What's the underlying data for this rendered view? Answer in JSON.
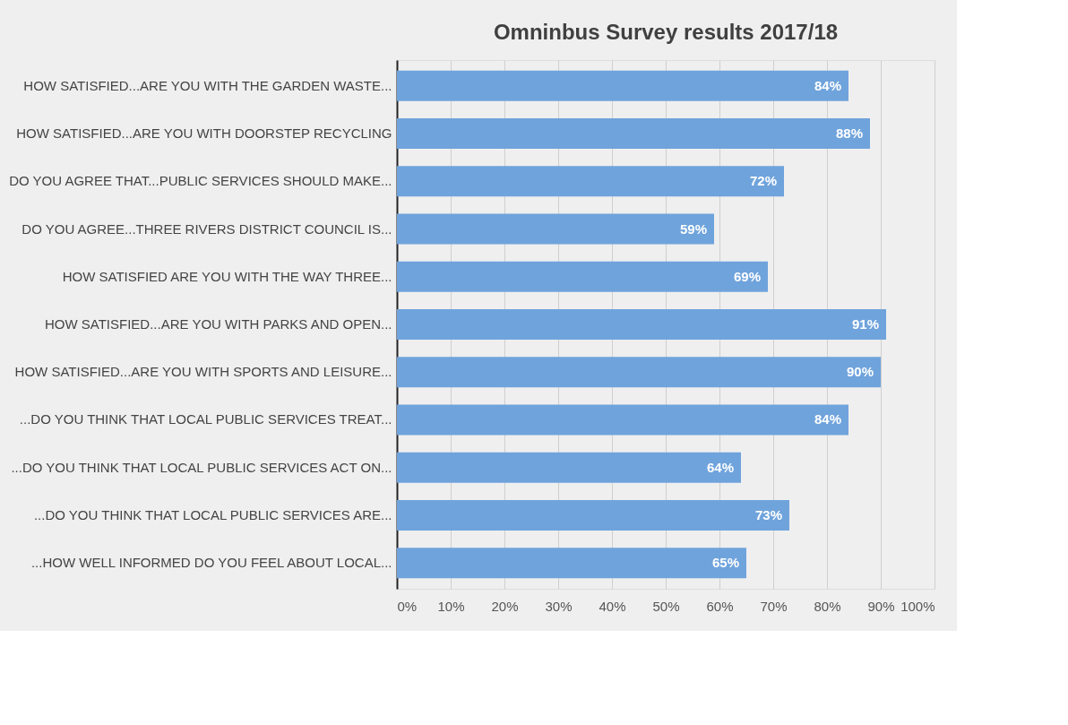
{
  "chart_data": {
    "type": "bar",
    "orientation": "horizontal",
    "title": "Omninbus Survey results 2017/18",
    "categories": [
      "HOW SATISFIED...ARE YOU WITH THE GARDEN WASTE...",
      "HOW SATISFIED...ARE YOU WITH DOORSTEP RECYCLING",
      "DO YOU AGREE THAT...PUBLIC SERVICES SHOULD MAKE...",
      "DO YOU AGREE...THREE RIVERS DISTRICT COUNCIL IS...",
      "HOW SATISFIED ARE YOU WITH THE WAY THREE...",
      "HOW SATISFIED...ARE YOU WITH PARKS AND OPEN...",
      "HOW SATISFIED...ARE YOU WITH SPORTS AND LEISURE...",
      "...DO YOU THINK THAT LOCAL PUBLIC SERVICES TREAT...",
      "...DO YOU THINK THAT LOCAL PUBLIC SERVICES ACT ON...",
      "...DO YOU THINK THAT LOCAL PUBLIC SERVICES ARE...",
      "...HOW WELL INFORMED DO YOU FEEL ABOUT LOCAL..."
    ],
    "values": [
      84,
      88,
      72,
      59,
      69,
      91,
      90,
      84,
      64,
      73,
      65
    ],
    "value_labels": [
      "84%",
      "88%",
      "72%",
      "59%",
      "69%",
      "91%",
      "90%",
      "84%",
      "64%",
      "73%",
      "65%"
    ],
    "color": "#6fa3dc",
    "xlim": [
      0,
      100
    ],
    "xticks": [
      {
        "value": 0,
        "label": "0%"
      },
      {
        "value": 10,
        "label": "10%"
      },
      {
        "value": 20,
        "label": "20%"
      },
      {
        "value": 30,
        "label": "30%"
      },
      {
        "value": 40,
        "label": "40%"
      },
      {
        "value": 50,
        "label": "50%"
      },
      {
        "value": 60,
        "label": "60%"
      },
      {
        "value": 70,
        "label": "70%"
      },
      {
        "value": 80,
        "label": "80%"
      },
      {
        "value": 90,
        "label": "90%"
      },
      {
        "value": 100,
        "label": "100%"
      }
    ],
    "grid": "x"
  }
}
